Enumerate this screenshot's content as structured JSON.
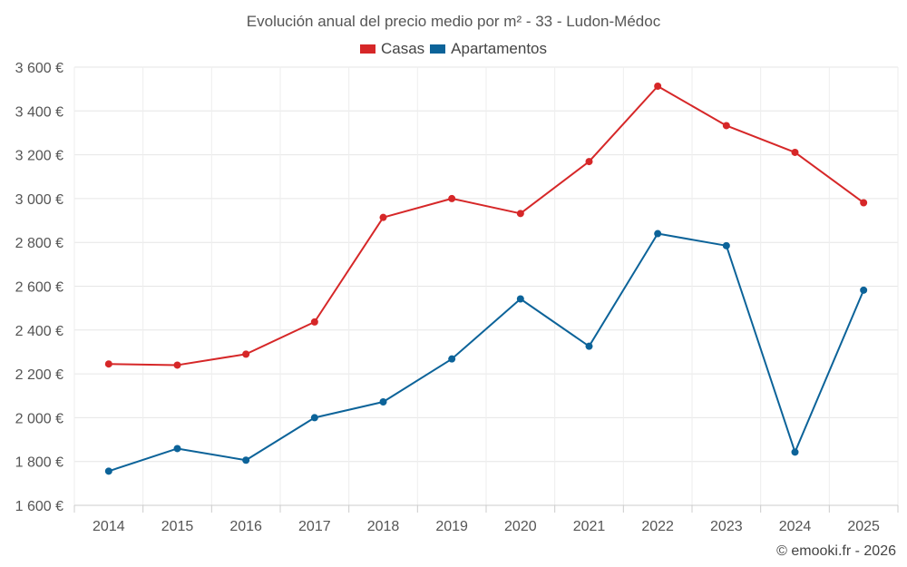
{
  "chart_data": {
    "type": "line",
    "title": "Evolución anual del precio medio por m² - 33 - Ludon-Médoc",
    "categories": [
      "2014",
      "2015",
      "2016",
      "2017",
      "2018",
      "2019",
      "2020",
      "2021",
      "2022",
      "2023",
      "2024",
      "2025"
    ],
    "series": [
      {
        "name": "Casas",
        "color": "#d62728",
        "values": [
          2245,
          2240,
          2290,
          2437,
          2914,
          3000,
          2932,
          3169,
          3513,
          3333,
          3211,
          2981
        ]
      },
      {
        "name": "Apartamentos",
        "color": "#0c6399",
        "values": [
          1756,
          1859,
          1806,
          2000,
          2072,
          2268,
          2542,
          2326,
          2840,
          2785,
          1843,
          2582
        ]
      }
    ],
    "ylim": [
      1600,
      3600
    ],
    "yticks": [
      1600,
      1800,
      2000,
      2200,
      2400,
      2600,
      2800,
      3000,
      3200,
      3400,
      3600
    ],
    "ytick_labels": [
      "1 600 €",
      "1 800 €",
      "2 000 €",
      "2 200 €",
      "2 400 €",
      "2 600 €",
      "2 800 €",
      "3 000 €",
      "3 200 €",
      "3 400 €",
      "3 600 €"
    ],
    "xlabel": "",
    "ylabel": "",
    "grid": true,
    "legend_position": "top-center"
  },
  "credit": "© emooki.fr - 2026"
}
